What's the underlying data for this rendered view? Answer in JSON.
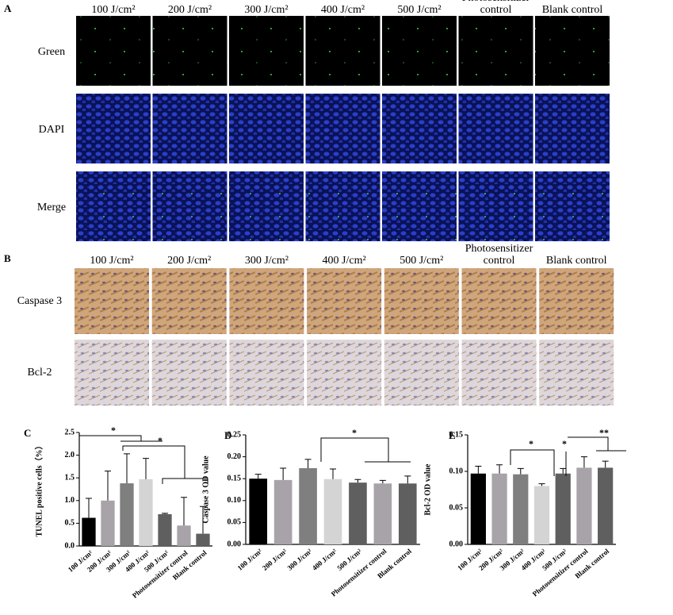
{
  "panel_a": {
    "label": "A",
    "columns": [
      "100 J/cm²",
      "200 J/cm²",
      "300 J/cm²",
      "400 J/cm²",
      "500 J/cm²",
      "Photosensitizer control",
      "Blank control"
    ],
    "rows": [
      "Green",
      "DAPI",
      "Merge"
    ]
  },
  "panel_b": {
    "label": "B",
    "columns": [
      "100 J/cm²",
      "200 J/cm²",
      "300 J/cm²",
      "400 J/cm²",
      "500 J/cm²",
      "Photosensitizer control",
      "Blank control"
    ],
    "rows": [
      "Caspase 3",
      "Bcl-2"
    ]
  },
  "chart_data": [
    {
      "type": "bar",
      "panel_label": "C",
      "ylabel": "TUNEL positive cells（%）",
      "categories": [
        "100 J/cm²",
        "200 J/cm²",
        "300 J/cm²",
        "400 J/cm²",
        "500 J/cm²",
        "Photosensitizer control",
        "Blank control"
      ],
      "values": [
        0.62,
        1.0,
        1.38,
        1.47,
        0.7,
        0.45,
        0.27
      ],
      "errors": [
        0.43,
        0.65,
        0.65,
        0.46,
        0.02,
        0.62,
        0.6
      ],
      "colors": [
        "#000000",
        "#a8a3a8",
        "#7f7f7f",
        "#d4d4d4",
        "#5f5f5f",
        "#a8a3a8",
        "#5f5f5f"
      ],
      "ylim": [
        0,
        2.5
      ],
      "yticks": [
        {
          "value": 0,
          "label": "0.0"
        },
        0.5,
        {
          "value": 1,
          "label": "1.0"
        },
        1.5,
        {
          "value": 2,
          "label": "2.0"
        },
        2.5
      ],
      "annotations": [
        "*",
        "*"
      ]
    },
    {
      "type": "bar",
      "panel_label": "D",
      "ylabel": "Caspase 3 OD value",
      "categories": [
        "100 J/cm²",
        "200 J/cm²",
        "300 J/cm²",
        "400 J/cm²",
        "500 J/cm²",
        "Photosensitizer control",
        "Blank control"
      ],
      "values": [
        0.15,
        0.147,
        0.174,
        0.149,
        0.141,
        0.139,
        0.139
      ],
      "errors": [
        0.01,
        0.027,
        0.02,
        0.023,
        0.007,
        0.007,
        0.017
      ],
      "colors": [
        "#000000",
        "#a8a3a8",
        "#7f7f7f",
        "#d4d4d4",
        "#5f5f5f",
        "#a8a3a8",
        "#5f5f5f"
      ],
      "ylim": [
        0,
        0.25
      ],
      "yticks": [
        {
          "value": 0,
          "label": "0.00"
        },
        {
          "value": 0.05,
          "label": "0.05"
        },
        {
          "value": 0.1,
          "label": "0.10"
        },
        {
          "value": 0.15,
          "label": "0.15"
        },
        {
          "value": 0.2,
          "label": "0.20"
        },
        {
          "value": 0.25,
          "label": "0.25"
        }
      ],
      "annotations": [
        "*"
      ]
    },
    {
      "type": "bar",
      "panel_label": "E",
      "ylabel": "Bcl-2 OD value",
      "categories": [
        "100 J/cm²",
        "200 J/cm²",
        "300 J/cm²",
        "400 J/cm²",
        "500 J/cm²",
        "Photosensitizer control",
        "Blank control"
      ],
      "values": [
        0.097,
        0.097,
        0.096,
        0.08,
        0.097,
        0.105,
        0.105
      ],
      "errors": [
        0.01,
        0.012,
        0.008,
        0.003,
        0.007,
        0.015,
        0.009
      ],
      "colors": [
        "#000000",
        "#a8a3a8",
        "#7f7f7f",
        "#d4d4d4",
        "#5f5f5f",
        "#a8a3a8",
        "#5f5f5f"
      ],
      "ylim": [
        0,
        0.15
      ],
      "yticks": [
        {
          "value": 0,
          "label": "0.00"
        },
        {
          "value": 0.05,
          "label": "0.05"
        },
        {
          "value": 0.1,
          "label": "0.10"
        },
        {
          "value": 0.15,
          "label": "0.15"
        }
      ],
      "annotations": [
        "*",
        "*",
        "**"
      ]
    }
  ]
}
